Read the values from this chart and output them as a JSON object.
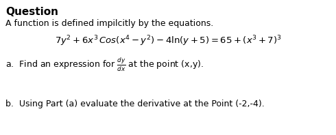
{
  "title": "Question",
  "subtitle": "A function is defined impilcitly by the equations.",
  "equation": "$7y^2 + 6x^3\\,Cos(x^4 - y^2) - 4\\ln(y + 5) = 65 + (x^3 + 7)^3$",
  "part_a_prefix": "a.  Find an expression for ",
  "part_a_frac": "$\\frac{dy}{dx}$",
  "part_a_suffix": " at the point (x,y).",
  "part_b": "b.  Using Part (a) evaluate the derivative at the Point (-2,-4).",
  "bg_color": "#ffffff",
  "text_color": "#000000",
  "title_fontsize": 11,
  "subtitle_fontsize": 9,
  "equation_fontsize": 9.5,
  "part_fontsize": 9
}
